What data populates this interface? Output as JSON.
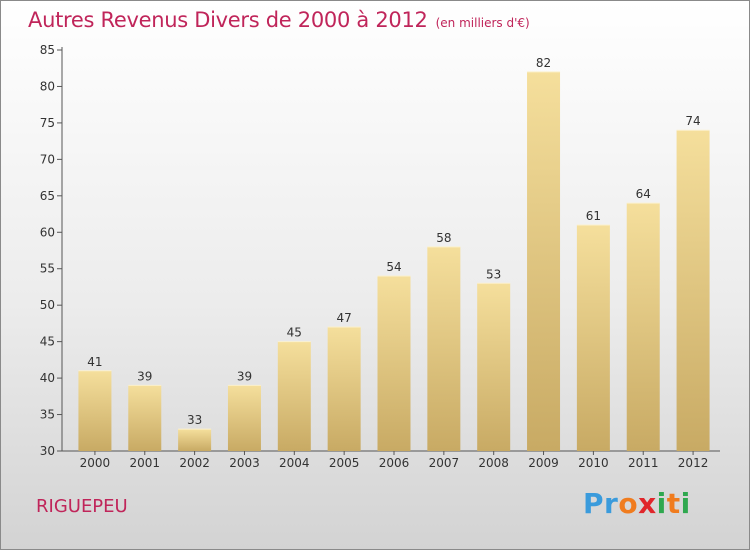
{
  "title": "Autres Revenus Divers de 2000 à 2012",
  "subtitle": "(en milliers d'€)",
  "commune": "RIGUEPEU",
  "logo": {
    "letters": [
      "P",
      "r",
      "o",
      "x",
      "i",
      "t",
      "i"
    ],
    "colors": [
      "#3a9bdc",
      "#3a9bdc",
      "#f07c1e",
      "#e0262b",
      "#2fa84f",
      "#f07c1e",
      "#2fa84f"
    ]
  },
  "colors": {
    "bar_top": "#f5df9c",
    "bar_bottom": "#c8aa64",
    "text": "#c0255a"
  },
  "chart_data": {
    "type": "bar",
    "categories": [
      "2000",
      "2001",
      "2002",
      "2003",
      "2004",
      "2005",
      "2006",
      "2007",
      "2008",
      "2009",
      "2010",
      "2011",
      "2012"
    ],
    "values": [
      41,
      39,
      33,
      39,
      45,
      47,
      54,
      58,
      53,
      82,
      61,
      64,
      74
    ],
    "data_labels": [
      "41",
      "39",
      "33",
      "39",
      "45",
      "47",
      "54",
      "58",
      "53",
      "82",
      "61",
      "64",
      "74"
    ],
    "y_ticks": [
      30,
      35,
      40,
      45,
      50,
      55,
      60,
      65,
      70,
      75,
      80,
      85
    ],
    "ylim": [
      30,
      85
    ],
    "grid": false,
    "legend": "none"
  }
}
